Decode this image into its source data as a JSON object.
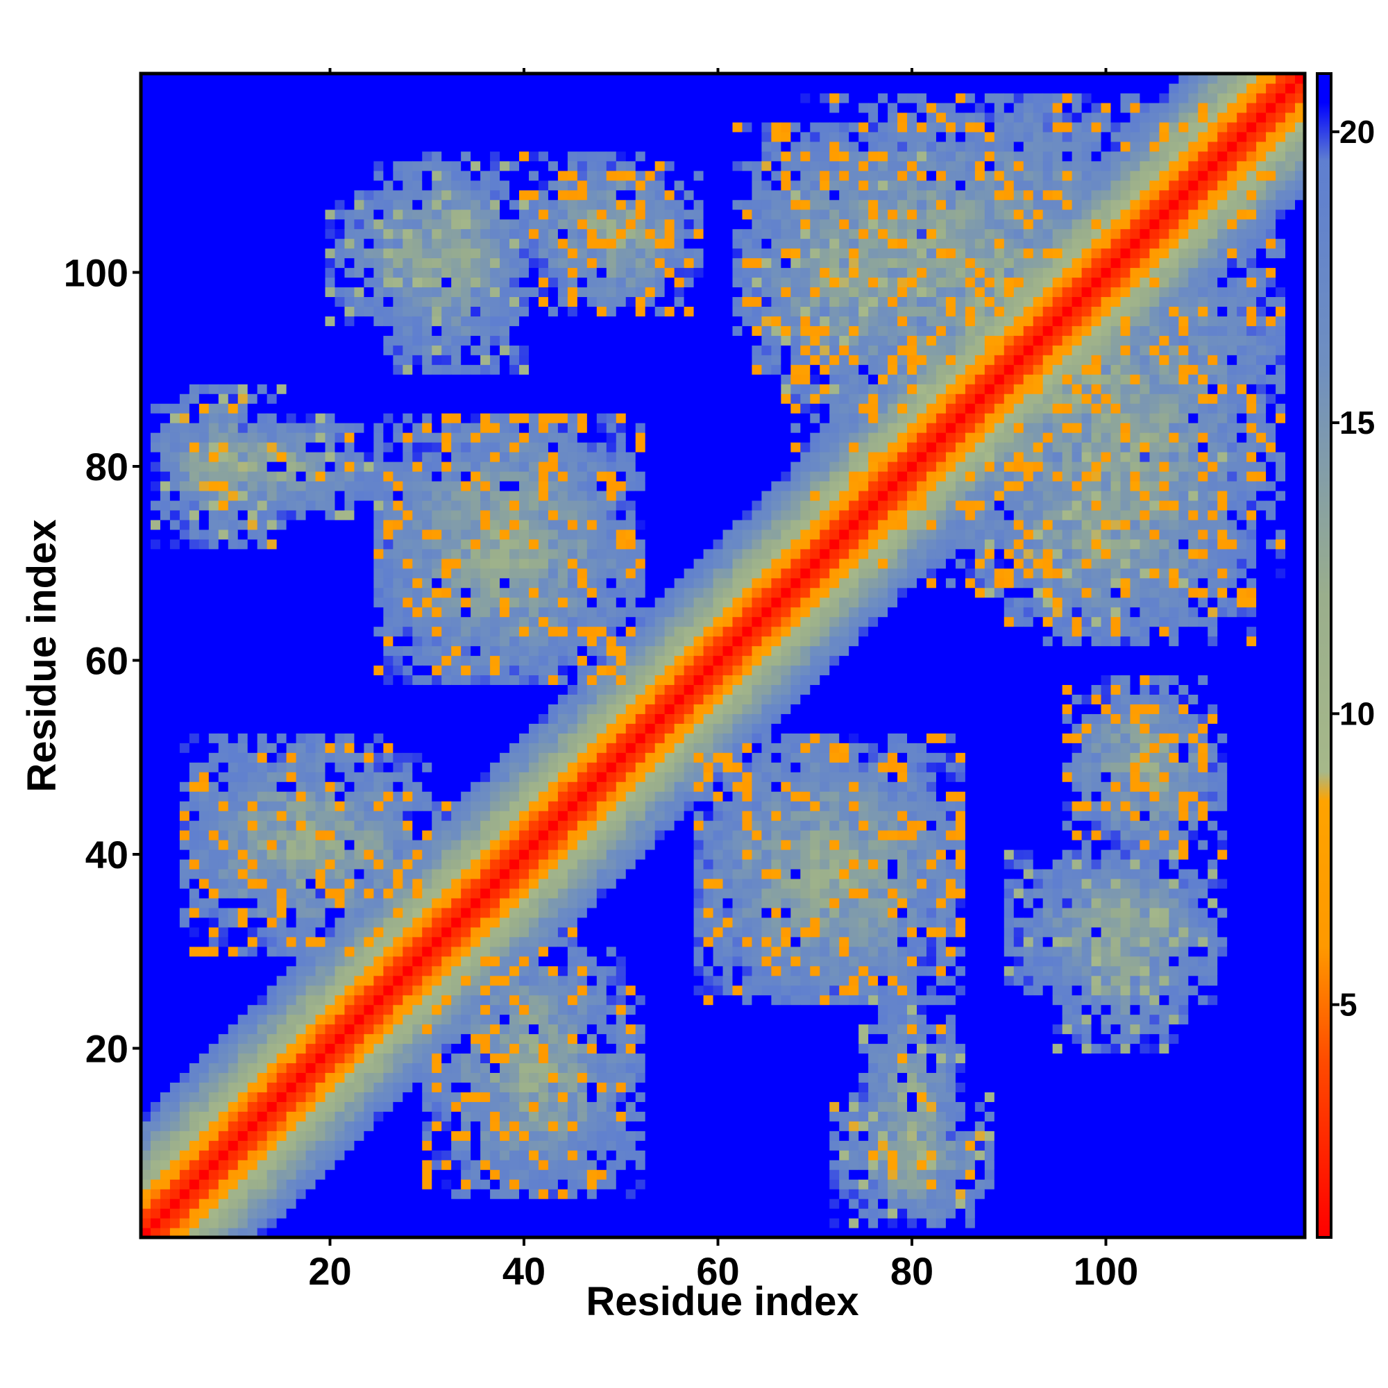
{
  "chart_data": {
    "type": "heatmap",
    "title": "",
    "xlabel": "Residue index",
    "ylabel": "Residue index",
    "n_residues": 120,
    "xlim": [
      1,
      120
    ],
    "ylim": [
      1,
      120
    ],
    "x_ticks": [
      "20",
      "40",
      "60",
      "80",
      "100"
    ],
    "y_ticks": [
      "20",
      "40",
      "60",
      "80",
      "100"
    ],
    "x_tick_values": [
      20,
      40,
      60,
      80,
      100
    ],
    "y_tick_values": [
      20,
      40,
      60,
      80,
      100
    ],
    "colorbar": {
      "range": [
        1,
        21
      ],
      "ticks": [
        "5",
        "10",
        "15",
        "20"
      ],
      "tick_values": [
        5,
        10,
        15,
        20
      ],
      "stops": [
        {
          "value": 1,
          "color": "#ff0000"
        },
        {
          "value": 4,
          "color": "#ff4a00"
        },
        {
          "value": 6,
          "color": "#ff9900"
        },
        {
          "value": 8.5,
          "color": "#ffa300"
        },
        {
          "value": 9,
          "color": "#a6b88a"
        },
        {
          "value": 12,
          "color": "#9aae8c"
        },
        {
          "value": 16,
          "color": "#6f8fc0"
        },
        {
          "value": 19.5,
          "color": "#5f7fd0"
        },
        {
          "value": 20.5,
          "color": "#0000ff"
        },
        {
          "value": 21,
          "color": "#0000ff"
        }
      ]
    },
    "background_value": 21,
    "background_color": "#0000ff",
    "diagonal_value": 1,
    "contact_regions": [
      {
        "x": [
          45,
          55
        ],
        "y": [
          97,
          110
        ],
        "min_value": 6
      },
      {
        "x": [
          25,
          40
        ],
        "y": [
          90,
          112
        ],
        "min_value": 9
      },
      {
        "x": [
          2,
          15
        ],
        "y": [
          72,
          88
        ],
        "min_value": 8
      },
      {
        "x": [
          25,
          50
        ],
        "y": [
          58,
          85
        ],
        "min_value": 6
      },
      {
        "x": [
          5,
          30
        ],
        "y": [
          30,
          52
        ],
        "min_value": 6
      },
      {
        "x": [
          68,
          110
        ],
        "y": [
          75,
          118
        ],
        "min_value": 6
      },
      {
        "x": [
          90,
          115
        ],
        "y": [
          62,
          100
        ],
        "min_value": 6
      },
      {
        "x": [
          58,
          85
        ],
        "y": [
          25,
          52
        ],
        "min_value": 6
      },
      {
        "x": [
          36,
          46
        ],
        "y": [
          5,
          32
        ],
        "min_value": 6
      },
      {
        "x": [
          75,
          85
        ],
        "y": [
          3,
          25
        ],
        "min_value": 8
      },
      {
        "x": [
          96,
          112
        ],
        "y": [
          40,
          58
        ],
        "min_value": 6
      },
      {
        "x": [
          95,
          108
        ],
        "y": [
          20,
          40
        ],
        "min_value": 10
      },
      {
        "x": [
          64,
          82
        ],
        "y": [
          87,
          113
        ],
        "min_value": 8
      }
    ]
  }
}
